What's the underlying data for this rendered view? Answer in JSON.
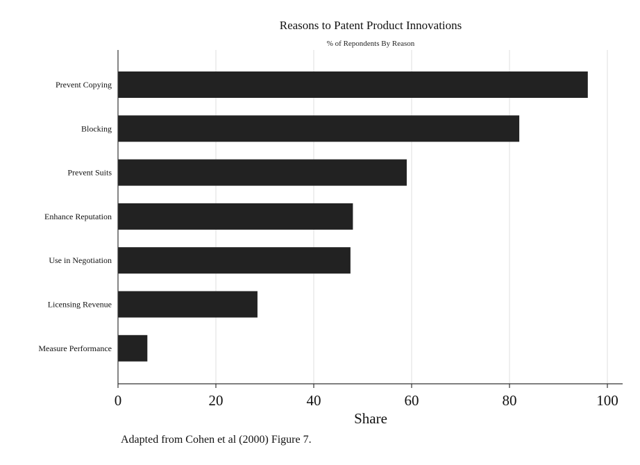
{
  "chart_data": {
    "type": "bar",
    "orientation": "horizontal",
    "title": "Reasons to Patent Product Innovations",
    "subtitle": "% of Repondents By Reason",
    "categories": [
      "Prevent Copying",
      "Blocking",
      "Prevent Suits",
      "Enhance Reputation",
      "Use in Negotiation",
      "Licensing Revenue",
      "Measure Performance"
    ],
    "values": [
      96,
      82,
      59,
      48,
      47.5,
      28.5,
      6
    ],
    "xlabel": "Share",
    "ylabel": "",
    "xlim": [
      0,
      100
    ],
    "xticks": [
      "0",
      "20",
      "40",
      "60",
      "80",
      "100"
    ],
    "grid": true,
    "bar_color": "#222222",
    "note": "Adapted from Cohen et al (2000) Figure 7."
  }
}
